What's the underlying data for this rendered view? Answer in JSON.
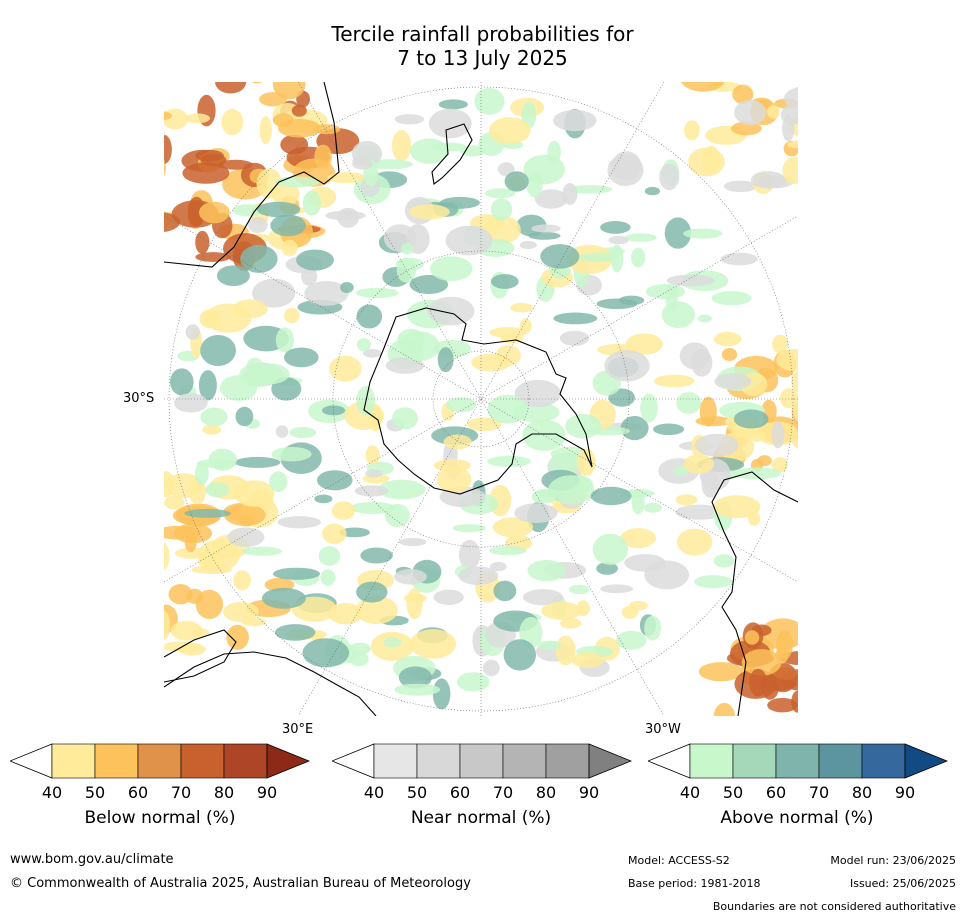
{
  "title": {
    "line1": "Tercile rainfall probabilities for",
    "line2": "7 to 13 July 2025"
  },
  "map": {
    "lat_label": "30°S",
    "lon_label_e": "30°E",
    "lon_label_w": "30°W",
    "colors": {
      "below": "#fdc25c",
      "below_dark": "#c9612e",
      "near": "#dcdcdc",
      "above": "#c8f7cc",
      "above_dark": "#82b9ac",
      "land_line": "#000000"
    }
  },
  "legends": [
    {
      "label": "Below normal (%)",
      "ticks": [
        "40",
        "50",
        "60",
        "70",
        "80",
        "90"
      ],
      "colors": [
        "#ffeb9a",
        "#fdc25c",
        "#e0924a",
        "#c9612e",
        "#ae4526",
        "#8c2a17"
      ]
    },
    {
      "label": "Near normal (%)",
      "ticks": [
        "40",
        "50",
        "60",
        "70",
        "80",
        "90"
      ],
      "colors": [
        "#e6e6e6",
        "#d8d8d8",
        "#c8c8c8",
        "#b4b4b4",
        "#a0a0a0",
        "#808080"
      ]
    },
    {
      "label": "Above normal (%)",
      "ticks": [
        "40",
        "50",
        "60",
        "70",
        "80",
        "90"
      ],
      "colors": [
        "#c8f7cc",
        "#a4d8b8",
        "#7eb4ac",
        "#5c94a0",
        "#35689c",
        "#124a84"
      ]
    }
  ],
  "footer": {
    "website": "www.bom.gov.au/climate",
    "copyright": "© Commonwealth of Australia 2025, Australian Bureau of Meteorology",
    "model": "Model: ACCESS-S2",
    "base_period": "Base period: 1981-2018",
    "model_run": "Model run: 23/06/2025",
    "issued": "Issued: 25/06/2025",
    "disclaimer": "Boundaries are not considered authoritative"
  }
}
